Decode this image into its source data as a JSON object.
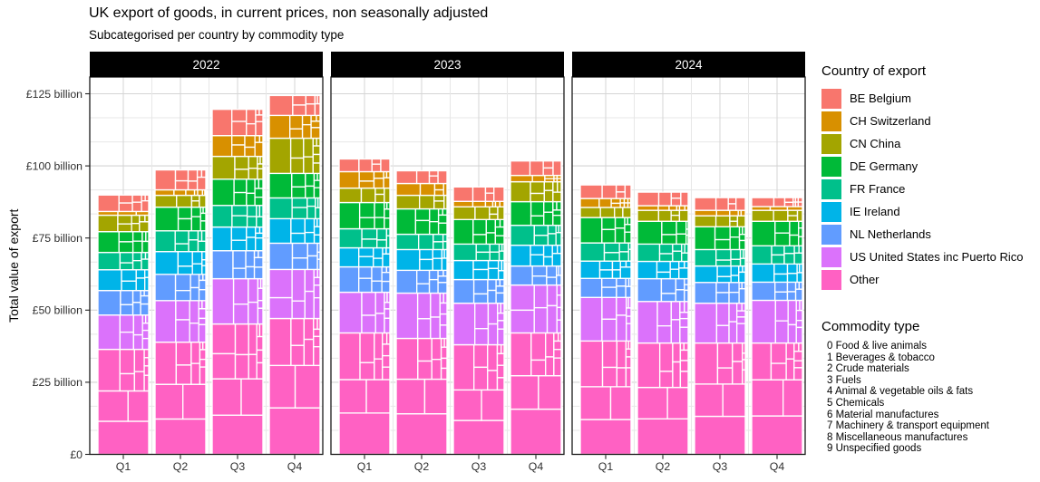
{
  "title": "UK export of goods, in current prices, non seasonally adjusted",
  "subtitle": "Subcategorised per country by commodity type",
  "y_axis": {
    "title": "Total value of export",
    "tick_labels": [
      "£0",
      "£25 billion",
      "£50 billion",
      "£75 billion",
      "£100 billion",
      "£125 billion"
    ],
    "tick_values": [
      0,
      25,
      50,
      75,
      100,
      125
    ]
  },
  "x_axis": {
    "labels": [
      "Q1",
      "Q2",
      "Q3",
      "Q4"
    ]
  },
  "facet_strips": [
    "2022",
    "2023",
    "2024"
  ],
  "country_legend": {
    "title": "Country of export",
    "items": [
      {
        "label": "BE Belgium",
        "color": "#F8766D"
      },
      {
        "label": "CH Switzerland",
        "color": "#D89000"
      },
      {
        "label": "CN China",
        "color": "#A3A500"
      },
      {
        "label": "DE Germany",
        "color": "#00BA38"
      },
      {
        "label": "FR France",
        "color": "#00C08B"
      },
      {
        "label": "IE Ireland",
        "color": "#00B4E8"
      },
      {
        "label": "NL Netherlands",
        "color": "#619CFF"
      },
      {
        "label": "US United States inc Puerto Rico",
        "color": "#DB72FB"
      },
      {
        "label": "Other",
        "color": "#FF61C3"
      }
    ]
  },
  "commodity_legend": {
    "title": "Commodity type",
    "items": [
      "0 Food & live animals",
      "1 Beverages & tobacco",
      "2 Crude materials",
      "3 Fuels",
      "4 Animal & vegetable oils & fats",
      "5 Chemicals",
      "6 Material manufactures",
      "7 Machinery & transport equipment",
      "8 Miscellaneous manufactures",
      "9 Unspecified goods"
    ]
  },
  "chart_data": {
    "type": "bar",
    "stacked": true,
    "unit": "GBP billion",
    "title": "UK export of goods, in current prices, non seasonally adjusted",
    "subtitle": "Subcategorised per country by commodity type",
    "ylabel": "Total value of export",
    "ylim": [
      0,
      131
    ],
    "grid": true,
    "legend_position": "right",
    "facet_years": [
      "2022",
      "2023",
      "2024"
    ],
    "categories": [
      "Q1",
      "Q2",
      "Q3",
      "Q4"
    ],
    "stack_order_bottom_to_top": [
      "Other",
      "US United States inc Puerto Rico",
      "NL Netherlands",
      "IE Ireland",
      "FR France",
      "DE Germany",
      "CN China",
      "CH Switzerland",
      "BE Belgium"
    ],
    "series": [
      {
        "name": "BE Belgium",
        "color": "#F8766D",
        "values": {
          "2022": [
            5.7,
            6.9,
            9.1,
            6.9
          ],
          "2023": [
            4.4,
            4.4,
            5.0,
            5.0
          ],
          "2024": [
            4.7,
            4.7,
            4.4,
            3.1
          ]
        }
      },
      {
        "name": "CH Switzerland",
        "color": "#D89000",
        "values": {
          "2022": [
            1.3,
            1.9,
            7.2,
            7.9
          ],
          "2023": [
            5.7,
            4.1,
            1.9,
            2.2
          ],
          "2024": [
            3.1,
            1.6,
            1.9,
            1.3
          ]
        }
      },
      {
        "name": "CN China",
        "color": "#A3A500",
        "values": {
          "2022": [
            5.7,
            4.1,
            7.9,
            12.2
          ],
          "2023": [
            5.0,
            4.7,
            4.4,
            6.9
          ],
          "2024": [
            3.5,
            3.8,
            3.8,
            3.8
          ]
        }
      },
      {
        "name": "DE Germany",
        "color": "#00BA38",
        "values": {
          "2022": [
            7.2,
            8.2,
            9.1,
            8.5
          ],
          "2023": [
            9.1,
            8.8,
            8.5,
            8.2
          ],
          "2024": [
            8.8,
            7.9,
            7.9,
            8.5
          ]
        }
      },
      {
        "name": "FR France",
        "color": "#00C08B",
        "values": {
          "2022": [
            6.0,
            7.2,
            7.5,
            7.2
          ],
          "2023": [
            6.6,
            5.3,
            5.7,
            6.9
          ],
          "2024": [
            6.3,
            6.0,
            5.7,
            6.3
          ]
        }
      },
      {
        "name": "IE Ireland",
        "color": "#00B4E8",
        "values": {
          "2022": [
            7.2,
            7.9,
            8.2,
            8.5
          ],
          "2023": [
            6.6,
            7.2,
            6.6,
            7.2
          ],
          "2024": [
            6.0,
            6.0,
            5.7,
            6.3
          ]
        }
      },
      {
        "name": "NL Netherlands",
        "color": "#619CFF",
        "values": {
          "2022": [
            8.5,
            9.1,
            9.7,
            9.1
          ],
          "2023": [
            8.8,
            7.9,
            8.2,
            6.6
          ],
          "2024": [
            6.6,
            7.9,
            7.2,
            6.3
          ]
        }
      },
      {
        "name": "US United States inc Puerto Rico",
        "color": "#DB72FB",
        "values": {
          "2022": [
            11.9,
            14.4,
            15.7,
            17.0
          ],
          "2023": [
            14.1,
            15.7,
            14.4,
            16.6
          ],
          "2024": [
            15.1,
            14.4,
            13.8,
            14.8
          ]
        }
      },
      {
        "name": "Other",
        "color": "#FF61C3",
        "values": {
          "2022": [
            36.4,
            38.9,
            45.2,
            47.1
          ],
          "2023": [
            42.1,
            40.2,
            38.0,
            42.1
          ],
          "2024": [
            39.3,
            38.6,
            38.6,
            38.6
          ]
        }
      }
    ],
    "totals": {
      "2022": [
        89.9,
        98.6,
        119.7,
        124.4
      ],
      "2023": [
        102.4,
        98.3,
        92.7,
        101.7
      ],
      "2024": [
        93.4,
        90.9,
        89.0,
        89.0
      ]
    },
    "note_visible_in_pixels": "each country block is subdivided into white-bordered commodity-type tiles (tile values are not labelled)"
  },
  "style": {
    "strip_bg": "#000000",
    "strip_text": "#ffffff",
    "panel_border": "#1a1a1a",
    "grid_major": "#d4d4d4",
    "grid_minor": "#e7e7e7",
    "axis_text": "#303030",
    "tile_border": "#ffffff"
  }
}
